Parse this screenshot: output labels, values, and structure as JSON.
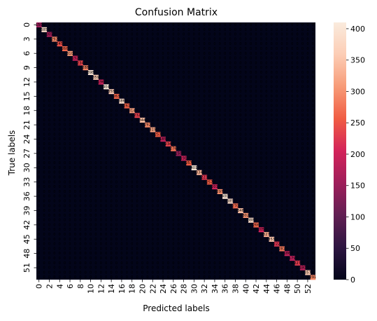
{
  "chart_data": {
    "type": "heatmap",
    "title": "Confusion Matrix",
    "xlabel": "Predicted labels",
    "ylabel": "True labels",
    "n_classes": 54,
    "x_tick_labels": [
      "0",
      "2",
      "4",
      "6",
      "8",
      "10",
      "12",
      "14",
      "16",
      "18",
      "20",
      "22",
      "24",
      "26",
      "28",
      "30",
      "32",
      "34",
      "36",
      "38",
      "40",
      "42",
      "44",
      "46",
      "48",
      "50",
      "52"
    ],
    "y_tick_labels": [
      "0",
      "3",
      "6",
      "9",
      "12",
      "15",
      "18",
      "21",
      "24",
      "27",
      "30",
      "33",
      "36",
      "39",
      "42",
      "45",
      "48",
      "51"
    ],
    "diagonal_value_range": [
      150,
      405
    ],
    "off_diagonal_typical_value": 0,
    "colorbar": {
      "min": 0,
      "max": 410,
      "ticks": [
        0,
        50,
        100,
        150,
        200,
        250,
        300,
        350,
        400
      ],
      "colormap": "rocket",
      "color_stops": [
        "#03051a",
        "#2d1541",
        "#611f53",
        "#9e1e5a",
        "#d3235a",
        "#f05c43",
        "#f79b77",
        "#fccdb5",
        "#faebdd"
      ]
    }
  }
}
